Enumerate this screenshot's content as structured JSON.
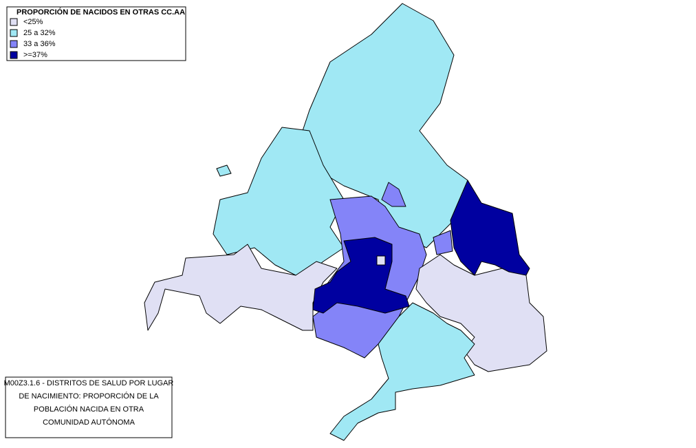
{
  "legend": {
    "title": "PROPORCIÓN DE NACIDOS EN OTRAS CC.AA",
    "items": [
      {
        "label": "<25%",
        "color": "#e0e0f4"
      },
      {
        "label": "25 a 32%",
        "color": "#a0e8f4"
      },
      {
        "label": "33 a 36%",
        "color": "#8484f8"
      },
      {
        "label": ">=37%",
        "color": "#0000a0"
      }
    ]
  },
  "caption": {
    "lines": [
      "M00Z3.1.6 - DISTRITOS DE SALUD POR LUGAR",
      "DE NACIMIENTO: PROPORCIÓN DE LA",
      "POBLACIÓN NACIDA EN OTRA",
      "COMUNIDAD AUTÓNOMA"
    ]
  }
}
